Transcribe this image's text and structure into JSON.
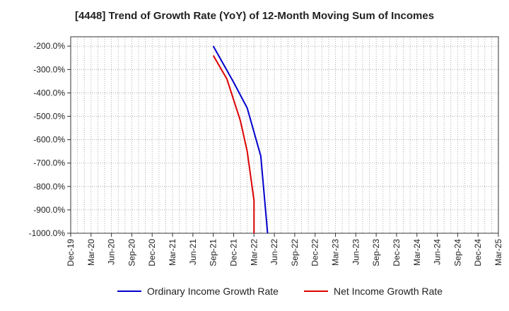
{
  "chart_data": {
    "type": "line",
    "title": "[4448]  Trend of Growth Rate (YoY) of 12-Month Moving Sum of Incomes",
    "xlabel": "",
    "ylabel": "",
    "x_ticks": [
      "Dec-19",
      "Mar-20",
      "Jun-20",
      "Sep-20",
      "Dec-20",
      "Mar-21",
      "Jun-21",
      "Sep-21",
      "Dec-21",
      "Mar-22",
      "Jun-22",
      "Sep-22",
      "Dec-22",
      "Mar-23",
      "Jun-23",
      "Sep-23",
      "Dec-23",
      "Mar-24",
      "Jun-24",
      "Sep-24",
      "Dec-24",
      "Mar-25"
    ],
    "y_ticks": [
      "-200.0%",
      "-300.0%",
      "-400.0%",
      "-500.0%",
      "-600.0%",
      "-700.0%",
      "-800.0%",
      "-900.0%",
      "-1000.0%"
    ],
    "ylim": [
      -1000,
      -160
    ],
    "grid": true,
    "legend_position": "bottom",
    "series": [
      {
        "name": "Ordinary Income Growth Rate",
        "color": "#0000cc",
        "points": [
          {
            "x": "Sep-21",
            "y": -200
          },
          {
            "x": "Dec-21",
            "y": -355
          },
          {
            "x": "Feb-22",
            "y": -465
          },
          {
            "x": "Apr-22",
            "y": -670
          },
          {
            "x": "May-22",
            "y": -1000
          }
        ]
      },
      {
        "name": "Net Income Growth Rate",
        "color": "#dd0000",
        "points": [
          {
            "x": "Sep-21",
            "y": -240
          },
          {
            "x": "Nov-21",
            "y": -340
          },
          {
            "x": "Jan-22",
            "y": -520
          },
          {
            "x": "Feb-22",
            "y": -650
          },
          {
            "x": "Mar-22",
            "y": -860
          },
          {
            "x": "Mar-22",
            "y": -1000
          }
        ]
      }
    ]
  }
}
